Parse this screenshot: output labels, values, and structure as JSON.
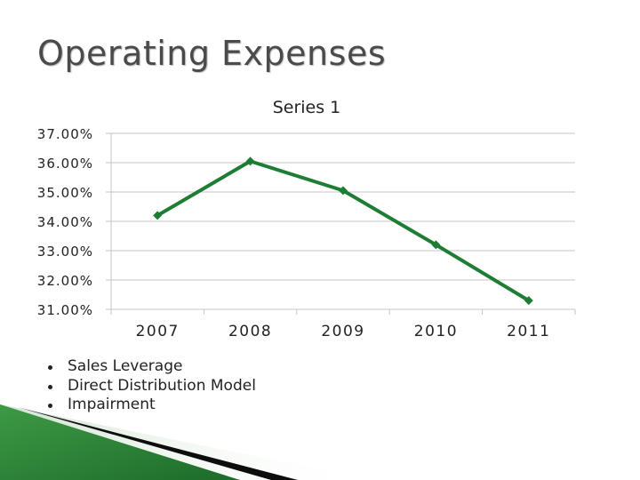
{
  "slide": {
    "title": "Operating Expenses",
    "bullets": [
      "Sales Leverage",
      "Direct Distribution Model",
      "Impairment"
    ]
  },
  "colors": {
    "line": "#1e7d34",
    "grid": "#c6c6c6",
    "axis_text": "#222222",
    "deco_green": "#2f8a3a",
    "deco_dark": "#0d0d0d"
  },
  "chart_data": {
    "type": "line",
    "title": "Series 1",
    "categories": [
      "2007",
      "2008",
      "2009",
      "2010",
      "2011"
    ],
    "series": [
      {
        "values": [
          34.2,
          36.05,
          35.05,
          33.2,
          31.3
        ]
      }
    ],
    "ylim": [
      31,
      37
    ],
    "yticks": [
      "37.00%",
      "36.00%",
      "35.00%",
      "34.00%",
      "33.00%",
      "32.00%",
      "31.00%"
    ],
    "grid": true,
    "legend": "none"
  }
}
